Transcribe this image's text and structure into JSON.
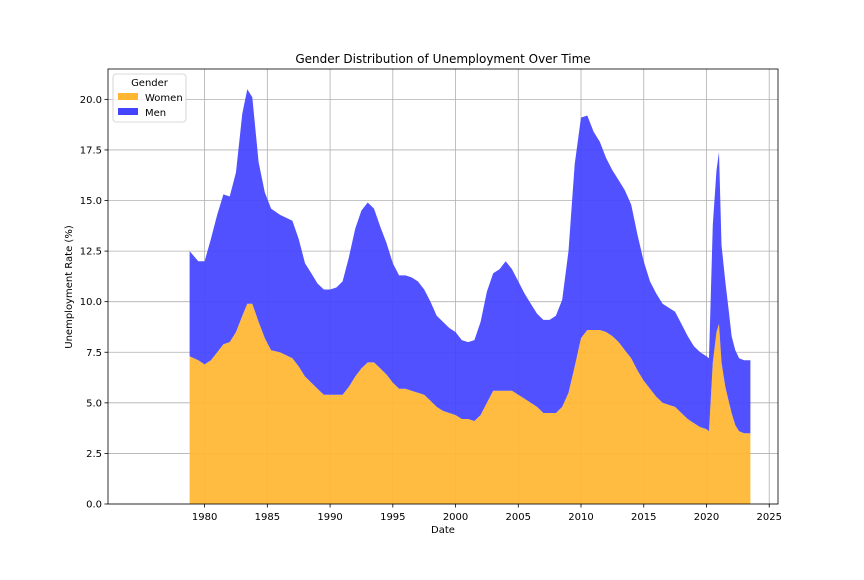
{
  "chart_data": {
    "type": "area",
    "stacked": true,
    "title": "Gender Distribution of Unemployment Over Time",
    "xlabel": "Date",
    "ylabel": "Unemployment Rate (%)",
    "xlim": [
      1972.3,
      2025.7
    ],
    "ylim": [
      0,
      21.5
    ],
    "x_ticks": [
      1980,
      1985,
      1990,
      1995,
      2000,
      2005,
      2010,
      2015,
      2020,
      2025
    ],
    "y_ticks": [
      0.0,
      2.5,
      5.0,
      7.5,
      10.0,
      12.5,
      15.0,
      17.5,
      20.0
    ],
    "y_tick_labels": [
      "0.0",
      "2.5",
      "5.0",
      "7.5",
      "10.0",
      "12.5",
      "15.0",
      "17.5",
      "20.0"
    ],
    "grid": true,
    "legend": {
      "title": "Gender",
      "position": "top-left"
    },
    "x": [
      1978.8,
      1979.5,
      1980.0,
      1980.5,
      1981.0,
      1981.5,
      1982.0,
      1982.5,
      1983.0,
      1983.4,
      1983.8,
      1984.3,
      1984.8,
      1985.3,
      1986.0,
      1987.0,
      1987.5,
      1988.0,
      1988.5,
      1989.0,
      1989.5,
      1990.0,
      1990.5,
      1991.0,
      1991.5,
      1992.0,
      1992.5,
      1993.0,
      1993.5,
      1994.0,
      1994.5,
      1995.0,
      1995.5,
      1996.0,
      1996.5,
      1997.0,
      1997.5,
      1998.0,
      1998.5,
      1999.0,
      1999.5,
      2000.0,
      2000.5,
      2001.0,
      2001.5,
      2002.0,
      2002.5,
      2003.0,
      2003.5,
      2004.0,
      2004.5,
      2005.0,
      2005.5,
      2006.0,
      2006.5,
      2007.0,
      2007.5,
      2008.0,
      2008.5,
      2009.0,
      2009.5,
      2010.0,
      2010.5,
      2011.0,
      2011.5,
      2012.0,
      2012.5,
      2013.0,
      2013.5,
      2014.0,
      2014.5,
      2015.0,
      2015.5,
      2016.0,
      2016.5,
      2017.0,
      2017.5,
      2018.0,
      2018.5,
      2019.0,
      2019.5,
      2020.0,
      2020.2,
      2020.5,
      2020.8,
      2021.0,
      2021.2,
      2021.5,
      2021.8,
      2022.0,
      2022.3,
      2022.6,
      2023.0,
      2023.5
    ],
    "series": [
      {
        "name": "Women",
        "color": "#FFB733",
        "values": [
          7.3,
          7.1,
          6.9,
          7.1,
          7.5,
          7.9,
          8.0,
          8.5,
          9.3,
          9.9,
          9.9,
          9.0,
          8.2,
          7.6,
          7.5,
          7.2,
          6.8,
          6.3,
          6.0,
          5.7,
          5.4,
          5.4,
          5.4,
          5.4,
          5.8,
          6.3,
          6.7,
          7.0,
          7.0,
          6.7,
          6.4,
          6.0,
          5.7,
          5.7,
          5.6,
          5.5,
          5.4,
          5.1,
          4.8,
          4.6,
          4.5,
          4.4,
          4.2,
          4.2,
          4.1,
          4.4,
          5.0,
          5.6,
          5.6,
          5.6,
          5.6,
          5.4,
          5.2,
          5.0,
          4.8,
          4.5,
          4.5,
          4.5,
          4.8,
          5.5,
          6.8,
          8.2,
          8.6,
          8.6,
          8.6,
          8.5,
          8.3,
          8.0,
          7.6,
          7.2,
          6.6,
          6.1,
          5.7,
          5.3,
          5.0,
          4.9,
          4.8,
          4.5,
          4.2,
          4.0,
          3.8,
          3.7,
          3.6,
          7.0,
          8.5,
          8.9,
          7.0,
          5.8,
          5.0,
          4.5,
          3.9,
          3.6,
          3.5,
          3.5
        ]
      },
      {
        "name": "Men",
        "color": "#4444FF",
        "values": [
          5.2,
          4.9,
          5.1,
          6.0,
          6.8,
          7.4,
          7.2,
          7.9,
          10.0,
          10.6,
          10.2,
          7.9,
          7.2,
          7.0,
          6.8,
          6.8,
          6.3,
          5.6,
          5.4,
          5.2,
          5.2,
          5.2,
          5.3,
          5.6,
          6.4,
          7.3,
          7.8,
          7.9,
          7.6,
          7.0,
          6.5,
          5.9,
          5.6,
          5.6,
          5.6,
          5.5,
          5.2,
          4.9,
          4.5,
          4.4,
          4.2,
          4.1,
          3.9,
          3.8,
          4.0,
          4.6,
          5.5,
          5.8,
          6.0,
          6.4,
          6.0,
          5.6,
          5.2,
          4.9,
          4.6,
          4.6,
          4.6,
          4.8,
          5.3,
          7.0,
          10.0,
          10.9,
          10.6,
          9.8,
          9.3,
          8.6,
          8.2,
          8.0,
          7.9,
          7.6,
          6.7,
          5.9,
          5.3,
          5.1,
          4.9,
          4.8,
          4.7,
          4.4,
          4.1,
          3.8,
          3.7,
          3.6,
          3.6,
          6.8,
          8.0,
          8.5,
          5.8,
          5.2,
          4.4,
          3.8,
          3.7,
          3.6,
          3.6,
          3.6
        ]
      }
    ]
  }
}
